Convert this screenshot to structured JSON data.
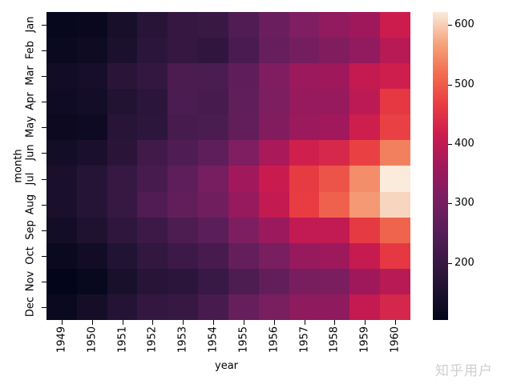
{
  "chart_data": {
    "type": "heatmap",
    "title": "",
    "xlabel": "year",
    "ylabel": "month",
    "x": [
      "1949",
      "1950",
      "1951",
      "1952",
      "1953",
      "1954",
      "1955",
      "1956",
      "1957",
      "1958",
      "1959",
      "1960"
    ],
    "y": [
      "Jan",
      "Feb",
      "Mar",
      "Apr",
      "May",
      "Jun",
      "Jul",
      "Aug",
      "Sep",
      "Oct",
      "Nov",
      "Dec"
    ],
    "values": [
      [
        112,
        115,
        145,
        171,
        196,
        204,
        242,
        284,
        315,
        340,
        360,
        417
      ],
      [
        118,
        126,
        150,
        180,
        196,
        188,
        233,
        277,
        301,
        318,
        342,
        391
      ],
      [
        132,
        141,
        178,
        193,
        236,
        235,
        267,
        317,
        356,
        362,
        406,
        419
      ],
      [
        129,
        135,
        163,
        181,
        235,
        227,
        269,
        313,
        348,
        348,
        396,
        461
      ],
      [
        121,
        125,
        172,
        183,
        229,
        234,
        270,
        318,
        355,
        363,
        420,
        472
      ],
      [
        135,
        149,
        178,
        218,
        243,
        264,
        315,
        374,
        422,
        435,
        472,
        535
      ],
      [
        148,
        170,
        199,
        230,
        264,
        302,
        364,
        413,
        465,
        491,
        548,
        622
      ],
      [
        148,
        170,
        199,
        242,
        272,
        293,
        347,
        405,
        467,
        505,
        559,
        606
      ],
      [
        136,
        158,
        184,
        209,
        237,
        259,
        312,
        355,
        404,
        404,
        463,
        508
      ],
      [
        119,
        133,
        162,
        191,
        211,
        229,
        274,
        306,
        347,
        359,
        407,
        461
      ],
      [
        104,
        114,
        146,
        172,
        180,
        203,
        237,
        271,
        305,
        310,
        362,
        390
      ],
      [
        118,
        140,
        166,
        194,
        201,
        229,
        278,
        306,
        336,
        337,
        405,
        432
      ]
    ],
    "colormap": "rocket",
    "vmin": 104,
    "vmax": 622,
    "colorbar": {
      "ticks": [
        "200",
        "300",
        "400",
        "500",
        "600"
      ],
      "tick_values": [
        200,
        300,
        400,
        500,
        600
      ]
    },
    "grid": false,
    "legend_position": "right colorbar"
  },
  "watermark": "知乎用户"
}
